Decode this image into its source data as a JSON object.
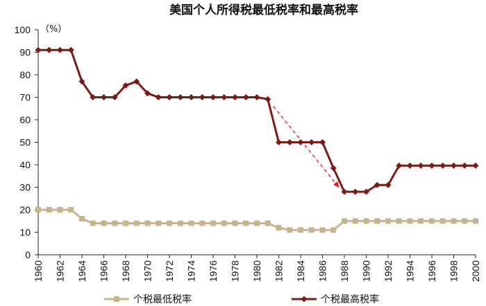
{
  "chart_data": {
    "type": "line",
    "title": "美国个人所得税最低税率和最高税率",
    "unit_label": "（%）",
    "xlabel": "",
    "ylabel": "",
    "ylim": [
      0,
      100
    ],
    "yticks": [
      0,
      10,
      20,
      30,
      40,
      50,
      60,
      70,
      80,
      90,
      100
    ],
    "xlim": [
      1960,
      2000
    ],
    "xticks": [
      1960,
      1962,
      1964,
      1966,
      1968,
      1970,
      1972,
      1974,
      1976,
      1978,
      1980,
      1982,
      1984,
      1986,
      1988,
      1990,
      1992,
      1994,
      1996,
      1998,
      2000
    ],
    "grid": false,
    "legend_position": "bottom",
    "x": [
      1960,
      1961,
      1962,
      1963,
      1964,
      1965,
      1966,
      1967,
      1968,
      1969,
      1970,
      1971,
      1972,
      1973,
      1974,
      1975,
      1976,
      1977,
      1978,
      1979,
      1980,
      1981,
      1982,
      1983,
      1984,
      1985,
      1986,
      1987,
      1988,
      1989,
      1990,
      1991,
      1992,
      1993,
      1994,
      1995,
      1996,
      1997,
      1998,
      1999,
      2000
    ],
    "series": [
      {
        "name": "个税最低税率",
        "color": "#c8b48a",
        "marker": "square",
        "values": [
          20,
          20,
          20,
          20,
          16,
          14,
          14,
          14,
          14,
          14,
          14,
          14,
          14,
          14,
          14,
          14,
          14,
          14,
          14,
          14,
          14,
          14,
          12,
          11,
          11,
          11,
          11,
          11,
          15,
          15,
          15,
          15,
          15,
          15,
          15,
          15,
          15,
          15,
          15,
          15,
          15
        ]
      },
      {
        "name": "个税最高税率",
        "color": "#7a1a12",
        "marker": "diamond",
        "values": [
          91,
          91,
          91,
          91,
          77,
          70,
          70,
          70,
          75.25,
          77,
          71.75,
          70,
          70,
          70,
          70,
          70,
          70,
          70,
          70,
          70,
          70,
          69.13,
          50,
          50,
          50,
          50,
          50,
          38.5,
          28,
          28,
          28,
          31,
          31,
          39.6,
          39.6,
          39.6,
          39.6,
          39.6,
          39.6,
          39.6,
          39.6
        ]
      }
    ],
    "annotation": {
      "type": "arrow",
      "color": "#e8201a",
      "from": [
        1981.5,
        66
      ],
      "to": [
        1987.5,
        30
      ]
    }
  }
}
